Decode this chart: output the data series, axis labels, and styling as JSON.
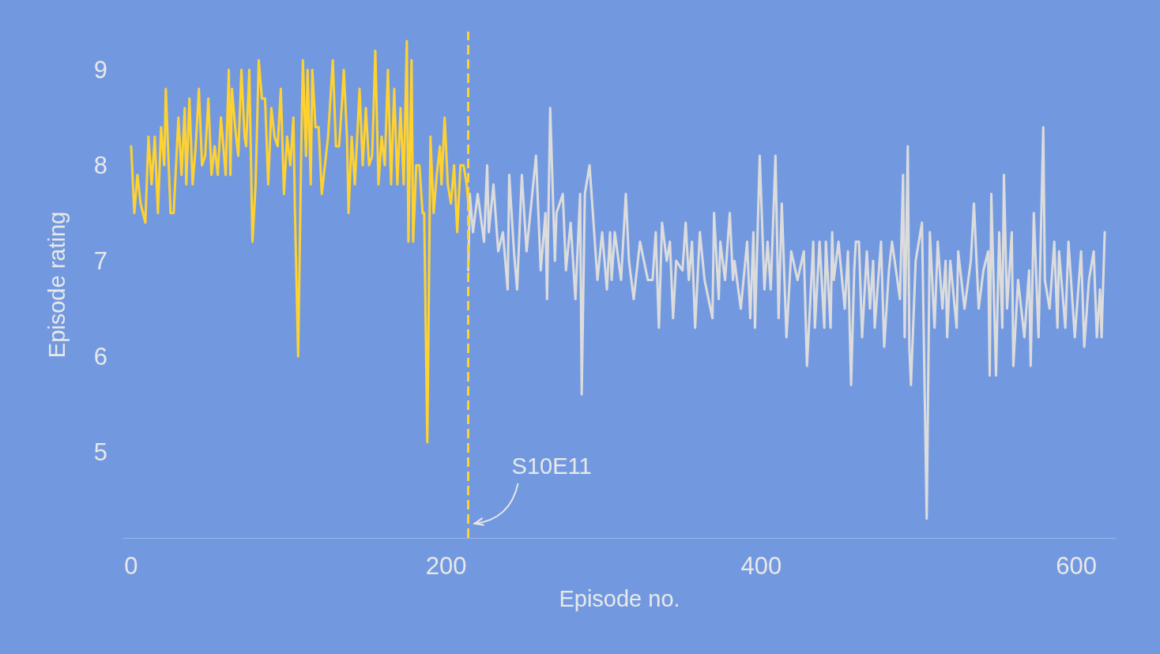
{
  "chart_data": {
    "type": "line",
    "xlabel": "Episode no.",
    "ylabel": "Episode rating",
    "xlim": [
      -5,
      625
    ],
    "xticks": [
      0,
      200,
      400,
      600
    ],
    "ylim": [
      4.1,
      9.4
    ],
    "yticks": [
      5,
      6,
      7,
      8,
      9
    ],
    "grid": false,
    "marker": "none",
    "line_style": "solid",
    "ref_lines": [
      {
        "axis": "x",
        "value": 214,
        "color": "#ffd230",
        "line_style": "dashed"
      }
    ],
    "annotations": [
      {
        "text": "S10E11",
        "x": 214,
        "y": 4.25
      }
    ],
    "series": [
      {
        "color": "#ffd230",
        "x": [
          0,
          2,
          4,
          6,
          9,
          11,
          13,
          15,
          17,
          19,
          21,
          22,
          25,
          27,
          30,
          32,
          34,
          35,
          37,
          39,
          41,
          43,
          45,
          47,
          49,
          51,
          53,
          55,
          57,
          60,
          62,
          63,
          64,
          66,
          68,
          70,
          72,
          73,
          75,
          77,
          79,
          81,
          83,
          85,
          87,
          89,
          91,
          93,
          95,
          97,
          99,
          101,
          103,
          104,
          106,
          108,
          109,
          111,
          112,
          114,
          115,
          117,
          119,
          121,
          123,
          125,
          128,
          130,
          132,
          134,
          135,
          137,
          138,
          140,
          142,
          145,
          147,
          149,
          151,
          153,
          155,
          157,
          159,
          161,
          163,
          165,
          167,
          169,
          171,
          173,
          175,
          176,
          178,
          179,
          181,
          183,
          185,
          186,
          188,
          190,
          192,
          194,
          196,
          197,
          199,
          201,
          203,
          205,
          207,
          209,
          211,
          213,
          214
        ],
        "values": [
          8.2,
          7.5,
          7.9,
          7.6,
          7.4,
          8.3,
          7.8,
          8.3,
          7.5,
          8.4,
          8.0,
          8.8,
          7.5,
          7.5,
          8.5,
          7.9,
          8.6,
          7.8,
          8.7,
          7.8,
          8.2,
          8.8,
          8.0,
          8.1,
          8.7,
          7.9,
          8.2,
          7.9,
          8.5,
          7.9,
          9.0,
          7.9,
          8.8,
          8.4,
          8.1,
          9.0,
          8.3,
          8.2,
          9.0,
          7.2,
          7.8,
          9.1,
          8.7,
          8.7,
          7.8,
          8.6,
          8.3,
          8.2,
          8.8,
          7.7,
          8.3,
          8.0,
          8.5,
          7.5,
          6.0,
          8.2,
          9.1,
          8.1,
          9.0,
          7.8,
          9.0,
          8.4,
          8.4,
          7.7,
          8.0,
          8.3,
          9.1,
          8.2,
          8.2,
          8.7,
          9.0,
          8.3,
          7.5,
          8.3,
          7.8,
          8.8,
          8.0,
          8.6,
          8.0,
          8.1,
          9.2,
          7.8,
          8.3,
          8.0,
          9.0,
          7.8,
          8.8,
          7.8,
          8.6,
          7.8,
          9.3,
          7.2,
          9.1,
          7.2,
          8.0,
          8.0,
          7.5,
          7.5,
          5.1,
          8.3,
          7.5,
          7.9,
          8.2,
          7.8,
          8.5,
          7.8,
          7.6,
          8.0,
          7.3,
          8.0,
          8.0,
          7.8,
          7.6
        ]
      },
      {
        "color": "#dcdcdc",
        "x": [
          214,
          215,
          217,
          220,
          224,
          226,
          227,
          230,
          233,
          236,
          239,
          240,
          243,
          245,
          248,
          251,
          257,
          260,
          263,
          264,
          266,
          269,
          270,
          274,
          276,
          279,
          282,
          285,
          286,
          288,
          291,
          296,
          299,
          302,
          304,
          305,
          307,
          311,
          314,
          316,
          319,
          323,
          328,
          331,
          333,
          335,
          337,
          340,
          342,
          344,
          346,
          350,
          352,
          354,
          356,
          358,
          361,
          364,
          369,
          370,
          373,
          374,
          377,
          380,
          382,
          383,
          387,
          391,
          393,
          395,
          396,
          399,
          402,
          404,
          406,
          409,
          411,
          413,
          416,
          419,
          423,
          427,
          429,
          433,
          434,
          437,
          440,
          441,
          444,
          445,
          446,
          449,
          453,
          455,
          457,
          459,
          460,
          462,
          464,
          467,
          469,
          471,
          472,
          476,
          478,
          481,
          483,
          488,
          490,
          491,
          493,
          494,
          495,
          498,
          502,
          505,
          507,
          510,
          512,
          515,
          517,
          518,
          520,
          524,
          525,
          529,
          533,
          535,
          538,
          541,
          544,
          545,
          546,
          549,
          551,
          553,
          554,
          556,
          559,
          560,
          563,
          567,
          570,
          571,
          573,
          576,
          579,
          580,
          583,
          586,
          588,
          589,
          593,
          595,
          599,
          603,
          605,
          608,
          611,
          613,
          615,
          616,
          618
        ],
        "values": [
          6.9,
          7.7,
          7.3,
          7.7,
          7.2,
          8.0,
          7.3,
          7.8,
          7.1,
          7.3,
          6.7,
          7.9,
          7.1,
          6.7,
          7.9,
          7.1,
          8.1,
          6.9,
          7.5,
          6.6,
          8.6,
          7.0,
          7.5,
          7.7,
          6.9,
          7.4,
          6.6,
          7.7,
          5.6,
          7.7,
          8.0,
          6.8,
          7.3,
          6.7,
          7.3,
          6.8,
          7.3,
          6.8,
          7.7,
          7.0,
          6.6,
          7.2,
          6.8,
          6.8,
          7.3,
          6.3,
          7.4,
          7.0,
          7.2,
          6.4,
          7.0,
          6.9,
          7.4,
          6.8,
          7.2,
          6.3,
          7.3,
          6.8,
          6.4,
          7.5,
          6.6,
          7.2,
          6.8,
          7.5,
          6.8,
          7.0,
          6.5,
          7.2,
          6.4,
          7.3,
          6.3,
          8.1,
          6.7,
          7.2,
          6.7,
          8.1,
          6.4,
          7.6,
          6.2,
          7.1,
          6.8,
          7.1,
          5.9,
          7.2,
          6.3,
          7.2,
          6.3,
          7.2,
          6.3,
          7.3,
          6.8,
          7.2,
          6.5,
          7.1,
          5.7,
          6.9,
          7.2,
          7.2,
          6.2,
          7.1,
          6.5,
          7.0,
          6.3,
          7.2,
          6.1,
          6.9,
          7.2,
          6.6,
          7.9,
          6.2,
          8.2,
          6.1,
          5.7,
          7.0,
          7.4,
          4.3,
          7.3,
          6.3,
          7.2,
          6.5,
          7.0,
          6.2,
          7.0,
          6.3,
          7.1,
          6.5,
          7.0,
          7.6,
          6.5,
          6.9,
          7.1,
          5.8,
          7.7,
          5.8,
          7.3,
          6.3,
          7.9,
          6.5,
          7.3,
          5.9,
          6.8,
          6.2,
          6.9,
          5.9,
          7.5,
          6.2,
          8.4,
          6.8,
          6.5,
          7.2,
          6.3,
          7.1,
          6.3,
          7.2,
          6.2,
          7.1,
          6.1,
          6.8,
          7.1,
          6.2,
          6.7,
          6.2,
          7.3
        ]
      }
    ]
  }
}
